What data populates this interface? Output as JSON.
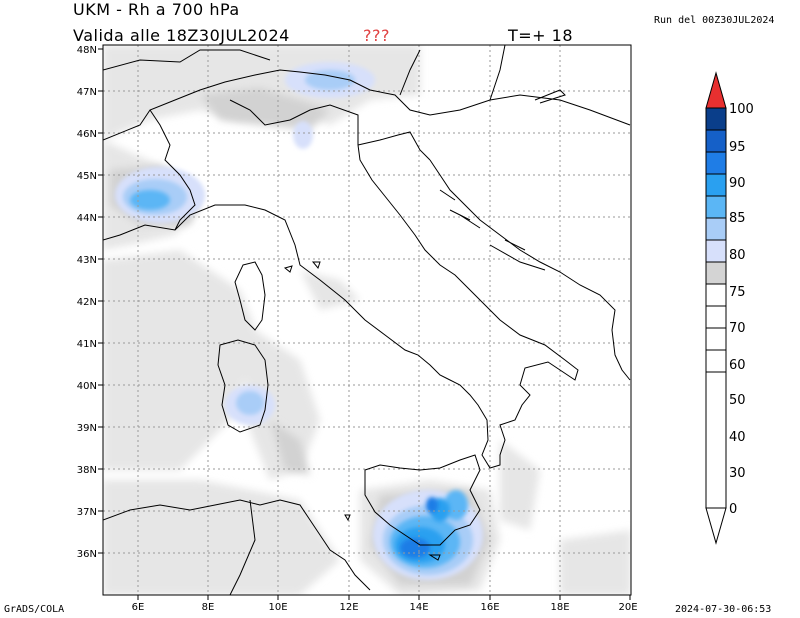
{
  "header": {
    "title": "UKM - Rh a 700 hPa",
    "valid": "Valida alle 18Z30JUL2024",
    "flag": "???",
    "lead": "T=+ 18",
    "run": "Run del 00Z30JUL2024"
  },
  "footer": {
    "left": "GrADS/COLA",
    "right": "2024-07-30-06:53"
  },
  "axes": {
    "lat_labels": [
      "48N",
      "47N",
      "46N",
      "45N",
      "44N",
      "43N",
      "42N",
      "41N",
      "40N",
      "39N",
      "38N",
      "37N",
      "36N"
    ],
    "lon_labels": [
      "6E",
      "8E",
      "10E",
      "12E",
      "14E",
      "16E",
      "18E",
      "20E"
    ]
  },
  "colorbar": {
    "levels": [
      "100",
      "95",
      "90",
      "85",
      "80",
      "75",
      "70",
      "60",
      "50",
      "40",
      "30",
      "0"
    ],
    "colors": [
      "#0a3e8a",
      "#1560c8",
      "#1f7de6",
      "#2aa0f0",
      "#5bb6f5",
      "#a9cdf7",
      "#d7e0fb",
      "#d4d4d4",
      "#ffffff",
      "#ffffff",
      "#ffffff",
      "#ffffff"
    ],
    "over_color": "#e83030"
  },
  "colors": {
    "flag": "#e04040",
    "grid": "#999999",
    "coast": "#000000"
  }
}
